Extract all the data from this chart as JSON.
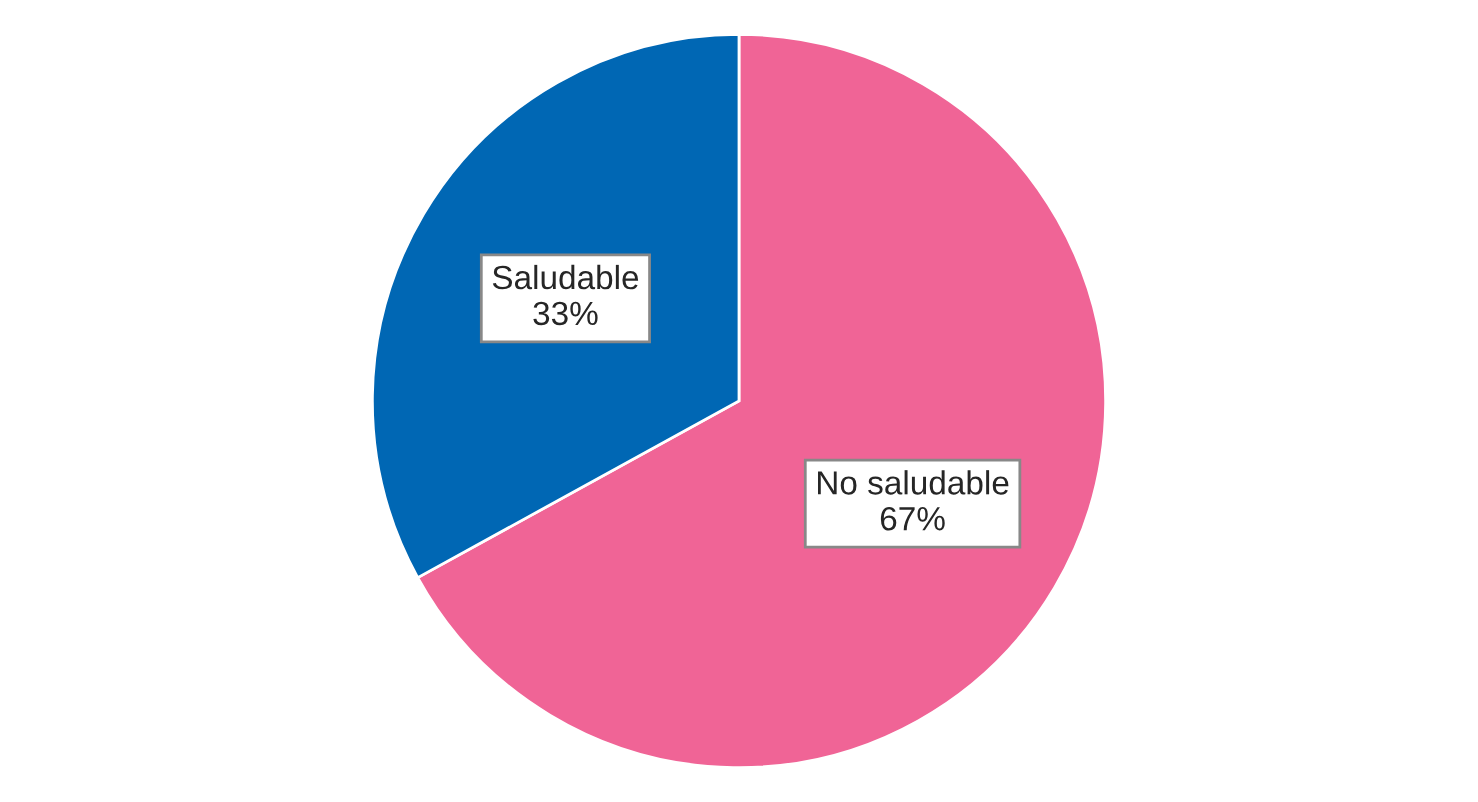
{
  "chart_data": {
    "type": "pie",
    "categories": [
      "No saludable",
      "Saludable"
    ],
    "values": [
      67,
      33
    ],
    "value_labels": [
      "67%",
      "33%"
    ],
    "colors": [
      "#f06496",
      "#0067b4"
    ]
  }
}
